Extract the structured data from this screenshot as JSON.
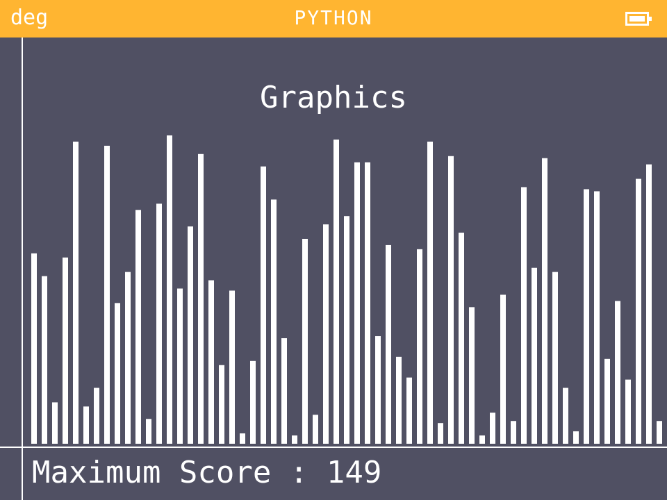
{
  "status_bar": {
    "angle_mode": "deg",
    "app_name": "PYTHON",
    "battery_icon": "battery-full-icon"
  },
  "colors": {
    "status_bar": "#FFB531",
    "background": "#505063",
    "foreground": "#FFFFFF"
  },
  "screen": {
    "title": "Graphics",
    "score_text": "Maximum Score : 149"
  },
  "chart_data": {
    "type": "bar",
    "title": "Graphics",
    "xlabel": "",
    "ylabel": "",
    "ylim": [
      0,
      150
    ],
    "grid": false,
    "values": [
      92,
      81,
      20,
      90,
      146,
      18,
      27,
      144,
      68,
      83,
      113,
      12,
      116,
      149,
      75,
      105,
      140,
      79,
      38,
      74,
      5,
      40,
      134,
      118,
      51,
      4,
      99,
      14,
      106,
      147,
      110,
      136,
      136,
      52,
      96,
      42,
      32,
      94,
      146,
      10,
      139,
      102,
      66,
      4,
      15,
      72,
      11,
      124,
      85,
      138,
      83,
      27,
      6,
      123,
      122,
      41,
      69,
      31,
      128,
      135,
      11,
      84
    ]
  }
}
